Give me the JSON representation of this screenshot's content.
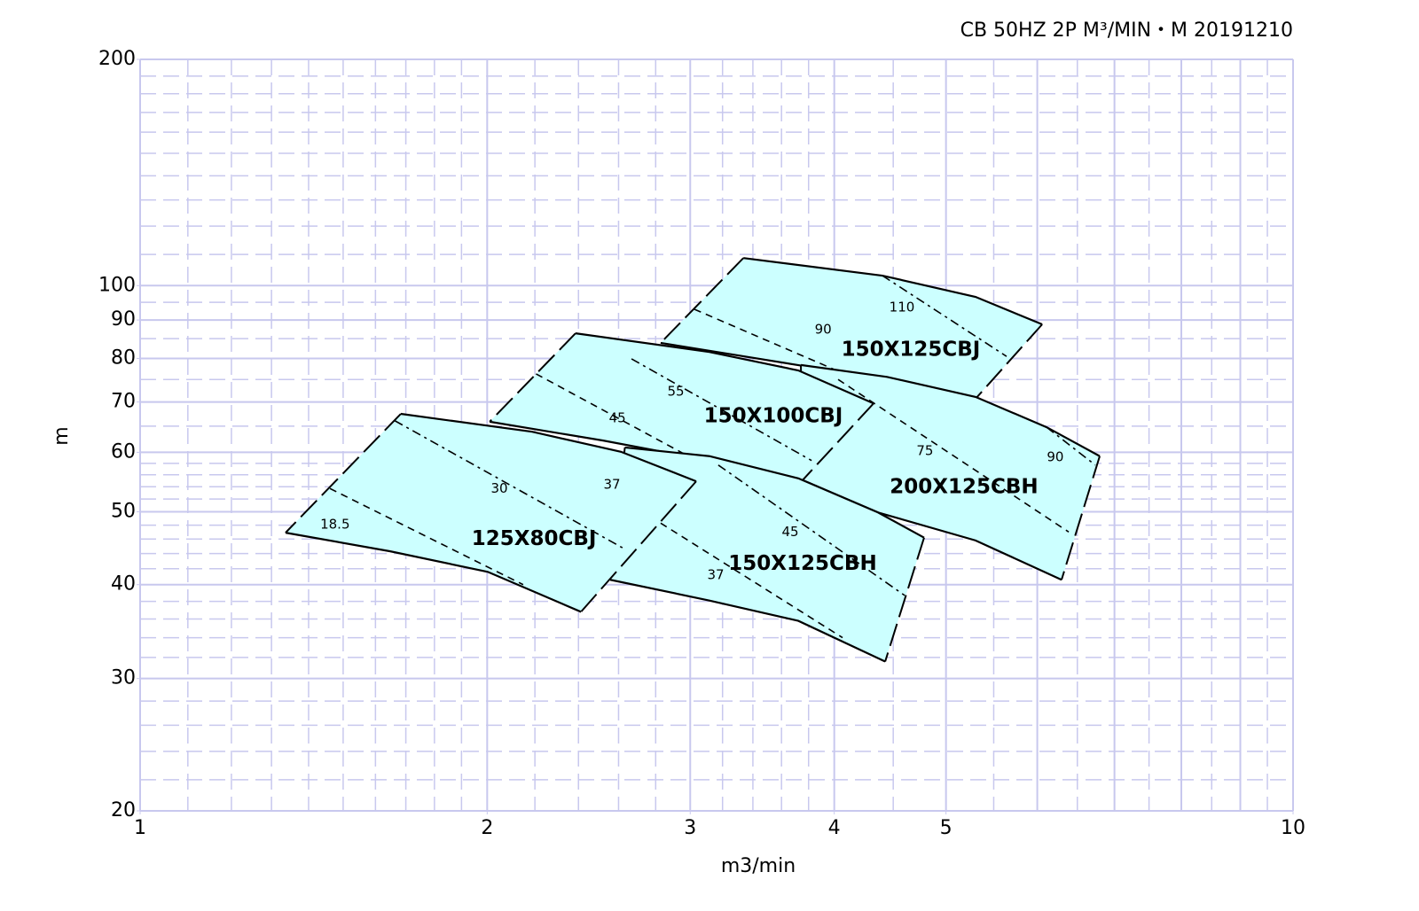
{
  "chart_data": {
    "type": "region",
    "title": "CB 50HZ 2P M³/MIN・M   20191210",
    "x_label": "m3/min",
    "y_label": "m",
    "log_x": true,
    "log_y": true,
    "grid": true,
    "fill_color": "#ccffff",
    "edge_color": "#000000",
    "xlim": [
      1,
      10
    ],
    "xticks": [
      1,
      2,
      3,
      4,
      5,
      10
    ],
    "ylim": [
      20,
      200
    ],
    "yticks": [
      20,
      30,
      40,
      50,
      60,
      70,
      80,
      90,
      100,
      200
    ],
    "xgrid": [
      1,
      2,
      3,
      4,
      5,
      6,
      7,
      8,
      9,
      10
    ],
    "xgrid_minor": [
      1.1,
      1.2,
      1.3,
      1.4,
      1.5,
      1.6,
      1.7,
      1.8,
      1.9,
      2.2,
      2.4,
      2.6,
      2.8,
      3.2,
      3.4,
      3.6,
      3.8,
      4.5,
      5.5,
      6.5,
      7.5,
      8.5,
      9.5
    ],
    "ygrid": [
      20,
      30,
      40,
      50,
      60,
      70,
      80,
      90,
      100,
      200
    ],
    "ygrid_minor": [
      22,
      24,
      26,
      28,
      32,
      34,
      36,
      38,
      42,
      44,
      46,
      48,
      52,
      54,
      56,
      58,
      65,
      75,
      85,
      95,
      110,
      120,
      130,
      140,
      150,
      160,
      170,
      180,
      190
    ],
    "regions": [
      {
        "name": "150X125CBJ",
        "label_x": 4.661,
        "label_y": 82.1,
        "top": {
          "x": [
            3.336,
            4.404,
            5.304,
            6.059
          ],
          "y": [
            108.8,
            103.1,
            96.6,
            88.8
          ]
        },
        "bottom": {
          "x": [
            2.828,
            3.755,
            4.327,
            5.304
          ],
          "y": [
            83.9,
            78.2,
            75.2,
            70.7
          ]
        },
        "dividers": [
          {
            "x": [
              3.025,
              4.14
            ],
            "y": [
              93.0,
              75.6
            ]
          },
          {
            "x": [
              4.404,
              5.643
            ],
            "y": [
              103.1,
              80.5
            ]
          }
        ],
        "motors": [
          {
            "kw": 90,
            "x": 3.912,
            "y": 87.4
          },
          {
            "kw": 110,
            "x": 4.579,
            "y": 93.5
          }
        ]
      },
      {
        "name": "200X125CBH",
        "label_x": 5.183,
        "label_y": 53.9,
        "top": {
          "x": [
            3.742,
            4.444,
            5.304,
            6.113,
            6.797
          ],
          "y": [
            78.4,
            75.6,
            71.1,
            64.8,
            59.3
          ]
        },
        "bottom": {
          "x": [
            3.755,
            4.365,
            5.304,
            6.298
          ],
          "y": [
            55.1,
            49.9,
            45.8,
            40.6
          ]
        },
        "dividers": [
          {
            "x": [
              4.031,
              6.389
            ],
            "y": [
              75.0,
              47.0
            ]
          },
          {
            "x": [
              6.113,
              6.737
            ],
            "y": [
              64.8,
              57.7
            ]
          }
        ],
        "motors": [
          {
            "kw": 75,
            "x": 4.794,
            "y": 60.2
          },
          {
            "kw": 90,
            "x": 6.22,
            "y": 59.1
          }
        ]
      },
      {
        "name": "150X100CBJ",
        "label_x": 3.542,
        "label_y": 67.0,
        "top": {
          "x": [
            2.386,
            3.117,
            3.723,
            4.327
          ],
          "y": [
            86.4,
            81.6,
            77.1,
            69.7
          ]
        },
        "bottom": {
          "x": [
            2.01,
            2.521,
            3.117,
            3.755
          ],
          "y": [
            65.9,
            62.2,
            58.5,
            55.1
          ]
        },
        "dividers": [
          {
            "x": [
              2.205,
              3.063
            ],
            "y": [
              76.3,
              58.1
            ]
          },
          {
            "x": [
              2.668,
              3.823
            ],
            "y": [
              79.9,
              58.5
            ]
          }
        ],
        "motors": [
          {
            "kw": 45,
            "x": 2.594,
            "y": 66.6
          },
          {
            "kw": 55,
            "x": 2.915,
            "y": 72.2
          }
        ]
      },
      {
        "name": "150X125CBH",
        "label_x": 3.755,
        "label_y": 42.6,
        "top": {
          "x": [
            2.633,
            3.117,
            3.723,
            4.365,
            4.786
          ],
          "y": [
            60.9,
            59.3,
            55.4,
            49.9,
            46.2
          ]
        },
        "bottom": {
          "x": [
            2.557,
            3.117,
            3.723,
            4.428
          ],
          "y": [
            40.6,
            38.1,
            35.8,
            31.6
          ]
        },
        "dividers": [
          {
            "x": [
              2.828,
              4.067
            ],
            "y": [
              48.3,
              34.0
            ]
          },
          {
            "x": [
              3.173,
              4.604
            ],
            "y": [
              57.7,
              38.7
            ]
          }
        ],
        "motors": [
          {
            "kw": 37,
            "x": 3.157,
            "y": 41.2
          },
          {
            "kw": 45,
            "x": 3.663,
            "y": 47.0
          }
        ]
      },
      {
        "name": "125X80CBJ",
        "label_x": 2.196,
        "label_y": 46.0,
        "top": {
          "x": [
            1.683,
            2.188,
            2.612,
            3.036
          ],
          "y": [
            67.5,
            63.9,
            60.1,
            54.9
          ]
        },
        "bottom": {
          "x": [
            1.337,
            1.648,
            2.002,
            2.412
          ],
          "y": [
            46.9,
            44.3,
            41.6,
            36.8
          ]
        },
        "dividers": [
          {
            "x": [
              1.461,
              2.149
            ],
            "y": [
              53.7,
              40.0
            ]
          },
          {
            "x": [
              1.663,
              2.633
            ],
            "y": [
              66.1,
              44.6
            ]
          }
        ],
        "motors": [
          {
            "kw": 18.5,
            "x": 1.476,
            "y": 48.1
          },
          {
            "kw": 30,
            "x": 2.049,
            "y": 53.7
          },
          {
            "kw": 37,
            "x": 2.566,
            "y": 54.3
          }
        ]
      }
    ]
  }
}
